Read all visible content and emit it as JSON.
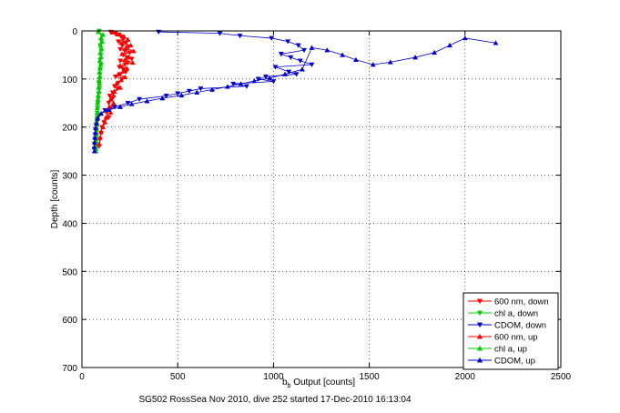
{
  "chart_data": {
    "type": "scatter",
    "title": "",
    "caption": "SG502 RossSea Nov 2010, dive 252 started 17-Dec-2010 16:13:04",
    "xlabel_main": "b",
    "xlabel_sub": "b",
    "xlabel_rest": " Output [counts]",
    "ylabel": "Depth [counts]",
    "xlim": [
      0,
      2500
    ],
    "ylim": [
      0,
      700
    ],
    "y_reversed": true,
    "grid": true,
    "x_ticks": [
      0,
      500,
      1000,
      1500,
      2000,
      2500
    ],
    "y_ticks": [
      0,
      100,
      200,
      300,
      400,
      500,
      600,
      700
    ],
    "legend_position": "bottom-right",
    "series": [
      {
        "name": "600 nm, down",
        "color": "#ff0000",
        "marker": "triangle-down",
        "points": [
          [
            150,
            2
          ],
          [
            175,
            5
          ],
          [
            195,
            8
          ],
          [
            205,
            12
          ],
          [
            215,
            18
          ],
          [
            190,
            22
          ],
          [
            230,
            25
          ],
          [
            210,
            30
          ],
          [
            245,
            33
          ],
          [
            200,
            38
          ],
          [
            225,
            42
          ],
          [
            250,
            45
          ],
          [
            215,
            50
          ],
          [
            235,
            55
          ],
          [
            260,
            58
          ],
          [
            200,
            62
          ],
          [
            240,
            66
          ],
          [
            225,
            70
          ],
          [
            195,
            75
          ],
          [
            215,
            80
          ],
          [
            230,
            85
          ],
          [
            200,
            90
          ],
          [
            175,
            95
          ],
          [
            210,
            100
          ],
          [
            190,
            108
          ],
          [
            170,
            115
          ],
          [
            185,
            120
          ],
          [
            160,
            128
          ],
          [
            145,
            135
          ],
          [
            160,
            140
          ],
          [
            140,
            150
          ],
          [
            150,
            160
          ],
          [
            130,
            170
          ],
          [
            140,
            180
          ],
          [
            115,
            190
          ],
          [
            105,
            200
          ],
          [
            100,
            212
          ],
          [
            95,
            225
          ],
          [
            90,
            240
          ]
        ]
      },
      {
        "name": "chl a, down",
        "color": "#00cc00",
        "marker": "triangle-down",
        "points": [
          [
            90,
            0
          ],
          [
            105,
            10
          ],
          [
            100,
            20
          ],
          [
            95,
            30
          ],
          [
            100,
            40
          ],
          [
            98,
            50
          ],
          [
            95,
            60
          ],
          [
            100,
            70
          ],
          [
            96,
            80
          ],
          [
            94,
            90
          ],
          [
            92,
            100
          ],
          [
            90,
            110
          ],
          [
            91,
            120
          ],
          [
            88,
            130
          ],
          [
            86,
            140
          ],
          [
            84,
            150
          ],
          [
            82,
            160
          ],
          [
            80,
            170
          ],
          [
            79,
            180
          ],
          [
            78,
            190
          ],
          [
            77,
            200
          ],
          [
            76,
            210
          ],
          [
            75,
            220
          ],
          [
            75,
            230
          ],
          [
            74,
            240
          ],
          [
            74,
            250
          ]
        ]
      },
      {
        "name": "CDOM, down",
        "color": "#0000cc",
        "marker": "triangle-down",
        "points": [
          [
            400,
            2
          ],
          [
            720,
            5
          ],
          [
            825,
            10
          ],
          [
            990,
            15
          ],
          [
            1075,
            22
          ],
          [
            1130,
            30
          ],
          [
            1160,
            40
          ],
          [
            1040,
            48
          ],
          [
            1090,
            55
          ],
          [
            1140,
            62
          ],
          [
            1200,
            70
          ],
          [
            1010,
            75
          ],
          [
            1080,
            85
          ],
          [
            1120,
            90
          ],
          [
            960,
            95
          ],
          [
            920,
            100
          ],
          [
            1000,
            105
          ],
          [
            790,
            110
          ],
          [
            860,
            115
          ],
          [
            620,
            120
          ],
          [
            560,
            125
          ],
          [
            500,
            130
          ],
          [
            440,
            135
          ],
          [
            300,
            142
          ],
          [
            240,
            150
          ],
          [
            170,
            158
          ],
          [
            120,
            165
          ],
          [
            90,
            175
          ],
          [
            80,
            185
          ],
          [
            75,
            195
          ],
          [
            72,
            205
          ],
          [
            70,
            215
          ],
          [
            68,
            225
          ],
          [
            66,
            235
          ],
          [
            65,
            245
          ]
        ]
      },
      {
        "name": "600 nm, up",
        "color": "#ff0000",
        "marker": "triangle-up",
        "points": [
          [
            160,
            3
          ],
          [
            185,
            7
          ],
          [
            220,
            12
          ],
          [
            240,
            18
          ],
          [
            205,
            25
          ],
          [
            255,
            30
          ],
          [
            230,
            36
          ],
          [
            270,
            42
          ],
          [
            210,
            48
          ],
          [
            245,
            54
          ],
          [
            225,
            60
          ],
          [
            265,
            66
          ],
          [
            200,
            72
          ],
          [
            235,
            78
          ],
          [
            215,
            84
          ],
          [
            190,
            90
          ],
          [
            225,
            96
          ],
          [
            205,
            102
          ],
          [
            180,
            110
          ],
          [
            200,
            118
          ],
          [
            170,
            126
          ],
          [
            165,
            134
          ],
          [
            150,
            142
          ],
          [
            165,
            150
          ],
          [
            140,
            160
          ],
          [
            150,
            170
          ],
          [
            125,
            180
          ],
          [
            120,
            190
          ],
          [
            110,
            200
          ],
          [
            100,
            210
          ],
          [
            95,
            222
          ],
          [
            90,
            235
          ]
        ]
      },
      {
        "name": "chl a, up",
        "color": "#00cc00",
        "marker": "triangle-up",
        "points": [
          [
            85,
            2
          ],
          [
            110,
            8
          ],
          [
            100,
            15
          ],
          [
            105,
            22
          ],
          [
            97,
            30
          ],
          [
            102,
            38
          ],
          [
            95,
            46
          ],
          [
            100,
            54
          ],
          [
            93,
            62
          ],
          [
            97,
            70
          ],
          [
            95,
            78
          ],
          [
            91,
            86
          ],
          [
            94,
            94
          ],
          [
            89,
            102
          ],
          [
            92,
            110
          ],
          [
            87,
            118
          ],
          [
            89,
            126
          ],
          [
            85,
            134
          ],
          [
            83,
            142
          ],
          [
            81,
            150
          ],
          [
            80,
            160
          ],
          [
            79,
            170
          ],
          [
            78,
            180
          ],
          [
            77,
            190
          ],
          [
            76,
            200
          ],
          [
            75,
            210
          ],
          [
            74,
            220
          ],
          [
            74,
            230
          ],
          [
            73,
            240
          ],
          [
            73,
            250
          ]
        ]
      },
      {
        "name": "CDOM, up",
        "color": "#0000cc",
        "marker": "triangle-up",
        "points": [
          [
            2160,
            25
          ],
          [
            2000,
            15
          ],
          [
            1920,
            30
          ],
          [
            1840,
            45
          ],
          [
            1740,
            55
          ],
          [
            1610,
            65
          ],
          [
            1520,
            70
          ],
          [
            1430,
            60
          ],
          [
            1360,
            50
          ],
          [
            1280,
            40
          ],
          [
            1200,
            35
          ],
          [
            1150,
            80
          ],
          [
            1060,
            90
          ],
          [
            980,
            98
          ],
          [
            900,
            104
          ],
          [
            830,
            110
          ],
          [
            760,
            116
          ],
          [
            680,
            122
          ],
          [
            600,
            128
          ],
          [
            520,
            134
          ],
          [
            420,
            140
          ],
          [
            340,
            146
          ],
          [
            260,
            152
          ],
          [
            200,
            158
          ],
          [
            140,
            164
          ],
          [
            100,
            172
          ],
          [
            82,
            182
          ],
          [
            76,
            192
          ],
          [
            72,
            202
          ],
          [
            70,
            212
          ],
          [
            68,
            222
          ],
          [
            66,
            232
          ],
          [
            65,
            242
          ],
          [
            65,
            250
          ]
        ]
      }
    ]
  }
}
